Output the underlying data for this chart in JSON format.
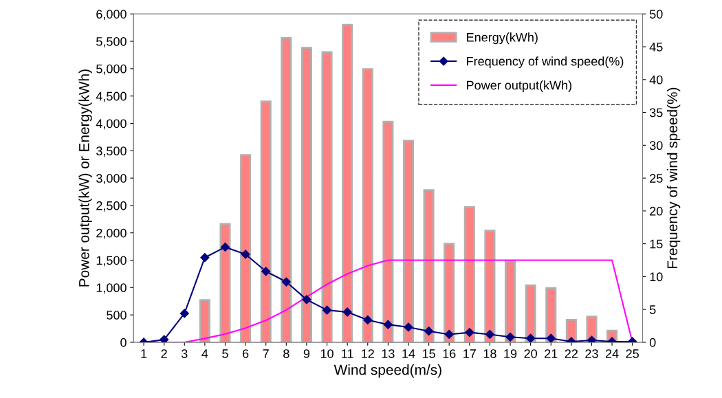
{
  "chart_data": {
    "type": "bar",
    "xlabel": "Wind speed(m/s)",
    "ylabel": "Power output(kW) or Energy(kWh)",
    "y2label": "Frequency of wind speed(%)",
    "categories": [
      "1",
      "2",
      "3",
      "4",
      "5",
      "6",
      "7",
      "8",
      "9",
      "10",
      "11",
      "12",
      "13",
      "14",
      "15",
      "16",
      "17",
      "18",
      "19",
      "20",
      "21",
      "22",
      "23",
      "24",
      "25"
    ],
    "ylim": [
      0,
      6000
    ],
    "yticks": [
      {
        "value": 0,
        "label": "0"
      },
      {
        "value": 500,
        "label": "500"
      },
      {
        "value": 1000,
        "label": "1,000"
      },
      {
        "value": 1500,
        "label": "1,500"
      },
      {
        "value": 2000,
        "label": "2,000"
      },
      {
        "value": 2500,
        "label": "2,500"
      },
      {
        "value": 3000,
        "label": "3,000"
      },
      {
        "value": 3500,
        "label": "3,500"
      },
      {
        "value": 4000,
        "label": "4,000"
      },
      {
        "value": 4500,
        "label": "4,500"
      },
      {
        "value": 5000,
        "label": "5,000"
      },
      {
        "value": 5500,
        "label": "5,500"
      },
      {
        "value": 6000,
        "label": "6,000"
      }
    ],
    "y2lim": [
      0,
      50
    ],
    "y2ticks": [
      0,
      5,
      10,
      15,
      20,
      25,
      30,
      35,
      40,
      45,
      50
    ],
    "grid": false,
    "legend": "top right",
    "series": [
      {
        "name": "Energy(kWh)",
        "color": "#ff8080",
        "values": [
          0,
          0,
          0,
          770,
          2160,
          3420,
          4400,
          5560,
          5380,
          5300,
          5800,
          4990,
          4030,
          3680,
          2780,
          1800,
          2470,
          2040,
          1480,
          1040,
          990,
          410,
          470,
          210,
          0
        ]
      },
      {
        "name": "Frequency of wind speed(%)",
        "type": "line",
        "axis": "y2",
        "color": "#000080",
        "marker": "diamond",
        "values": [
          0,
          0.4,
          4.4,
          12.9,
          14.5,
          13.4,
          10.8,
          9.2,
          6.5,
          4.9,
          4.6,
          3.4,
          2.7,
          2.3,
          1.7,
          1.2,
          1.5,
          1.2,
          0.8,
          0.6,
          0.6,
          0.1,
          0.3,
          0.1,
          0.1
        ]
      },
      {
        "name": "Power output(kWh)",
        "type": "line",
        "color": "#ff00ff",
        "marker": "none",
        "values": [
          0,
          0,
          0,
          70,
          150,
          260,
          400,
          590,
          830,
          1060,
          1250,
          1400,
          1500,
          1500,
          1500,
          1500,
          1500,
          1500,
          1500,
          1500,
          1500,
          1500,
          1500,
          1500,
          0
        ]
      }
    ]
  }
}
